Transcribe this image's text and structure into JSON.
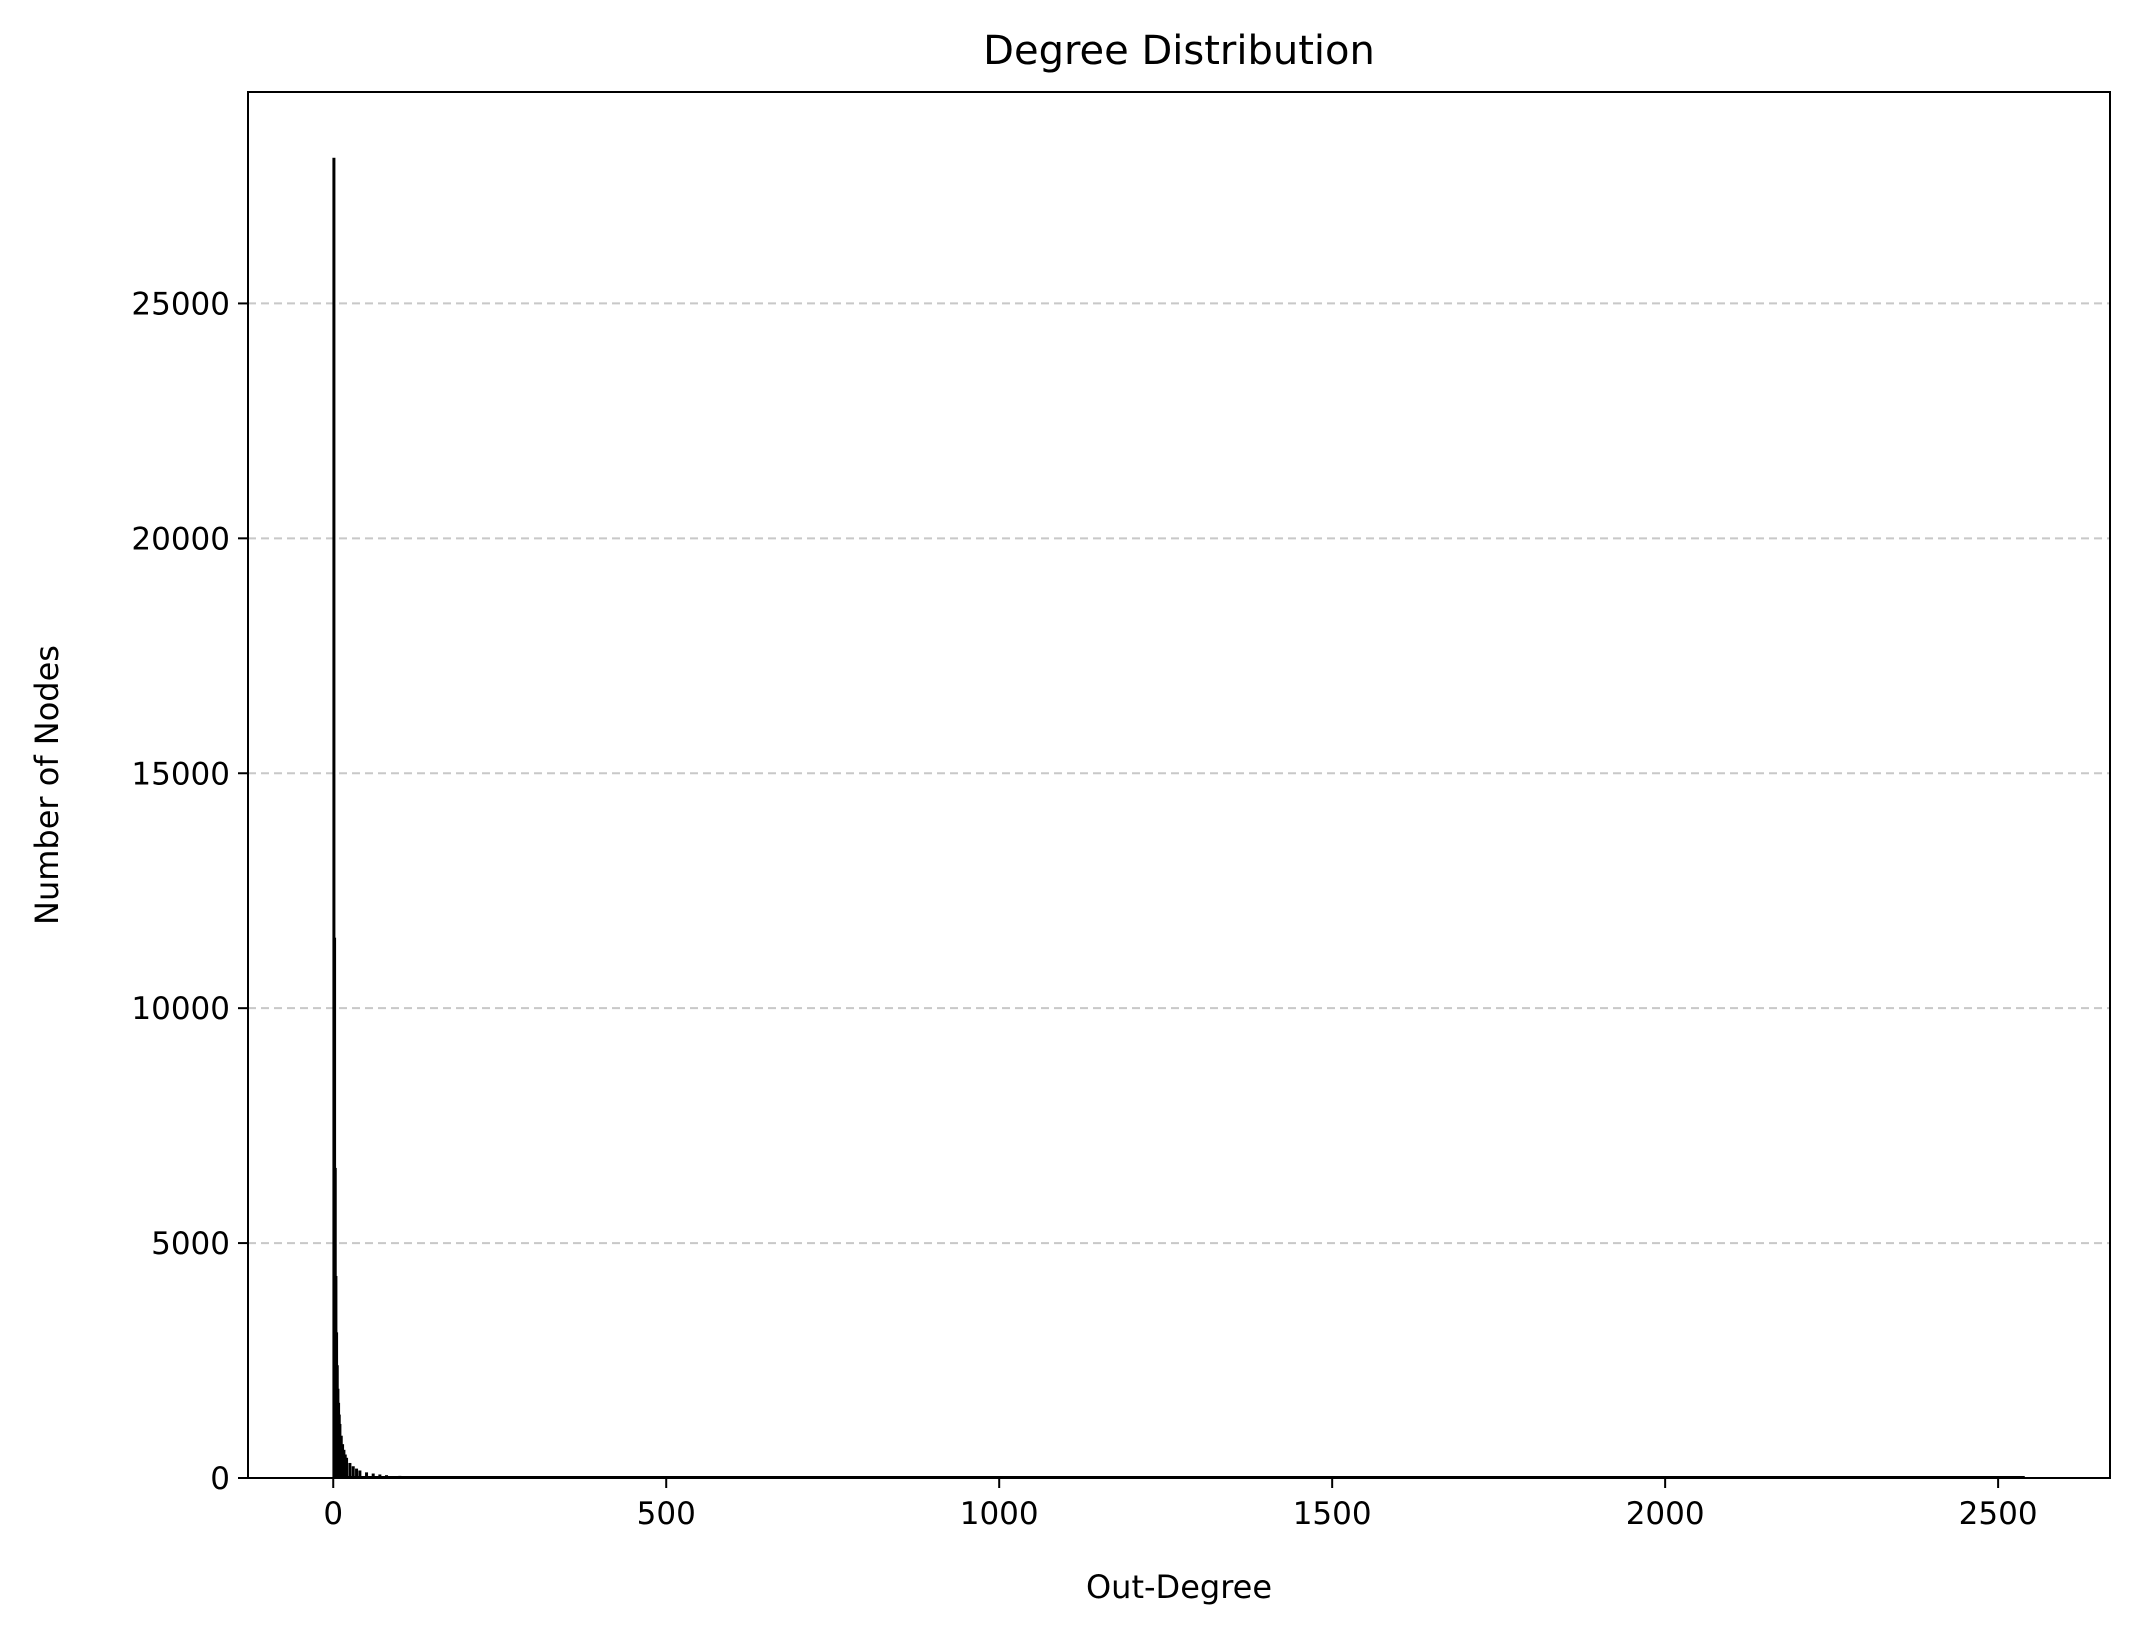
{
  "chart_data": {
    "type": "bar",
    "title": "Degree Distribution",
    "xlabel": "Out-Degree",
    "ylabel": "Number of Nodes",
    "xlim": [
      -128,
      2668
    ],
    "ylim": [
      0,
      29500
    ],
    "xticks": [
      0,
      500,
      1000,
      1500,
      2000,
      2500
    ],
    "yticks": [
      0,
      5000,
      10000,
      15000,
      20000,
      25000
    ],
    "grid": "y-dashed",
    "legend": "none",
    "bar_color": "#000000",
    "grid_color": "#c8c8c8",
    "series": [
      {
        "x": [
          1,
          2,
          3,
          4,
          5,
          6,
          7,
          8,
          9,
          10,
          12,
          14,
          16,
          18,
          20,
          25,
          30,
          35,
          40,
          50,
          60,
          70,
          80,
          100,
          120,
          150,
          200,
          250,
          300,
          400,
          500,
          700,
          1000,
          1500,
          2000,
          2540
        ],
        "values": [
          28100,
          11500,
          6600,
          4300,
          3100,
          2400,
          1900,
          1600,
          1350,
          1150,
          900,
          720,
          600,
          500,
          430,
          320,
          250,
          200,
          160,
          120,
          95,
          75,
          60,
          45,
          35,
          25,
          18,
          12,
          9,
          6,
          4,
          3,
          2,
          1,
          1,
          1
        ]
      }
    ]
  }
}
